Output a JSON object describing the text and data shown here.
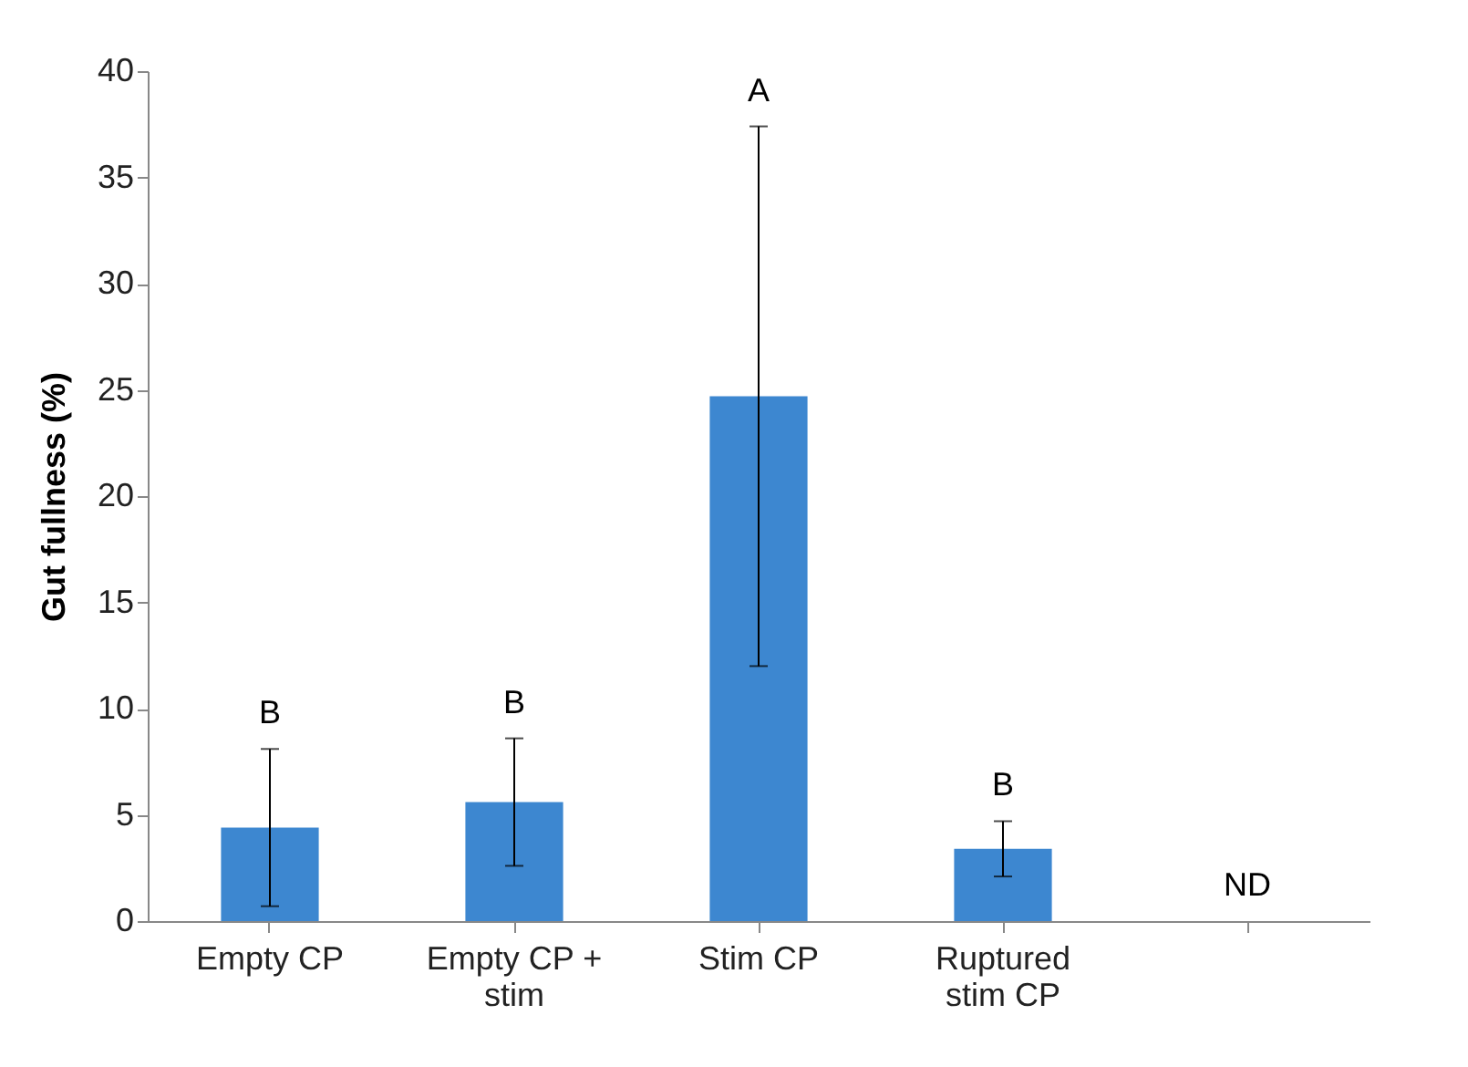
{
  "chart_data": {
    "type": "bar",
    "ylabel": "Gut fullness (%)",
    "categories": [
      "Empty CP",
      "Empty CP + stim",
      "Stim CP",
      "Ruptured stim CP",
      null
    ],
    "values": [
      4.4,
      5.6,
      24.7,
      3.4,
      null
    ],
    "errors": [
      [
        0.7,
        8.1
      ],
      [
        2.6,
        8.6
      ],
      [
        12.0,
        37.4
      ],
      [
        2.1,
        4.7
      ],
      null
    ],
    "color": "#3d87d0",
    "ylim": [
      0,
      40
    ],
    "yticks": [
      0,
      5,
      10,
      15,
      20,
      25,
      30,
      35,
      40
    ],
    "grid": false,
    "annotations": [
      "B",
      "B",
      "A",
      "B",
      "ND"
    ]
  }
}
